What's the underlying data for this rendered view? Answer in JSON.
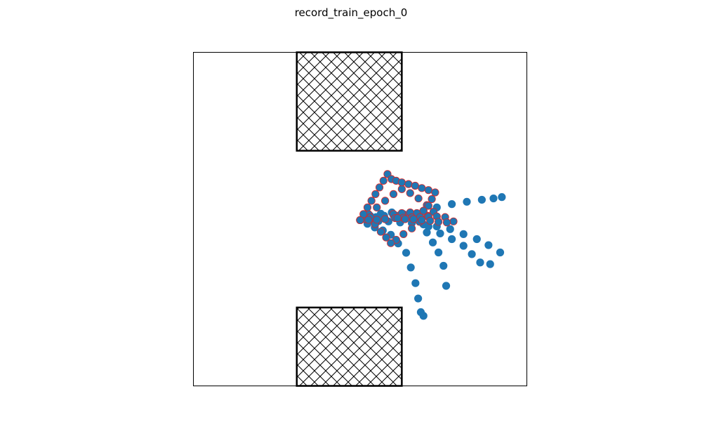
{
  "title": "record_train_epoch_0",
  "chart_data": {
    "type": "scatter",
    "title": "record_train_epoch_0",
    "xlabel": "",
    "ylabel": "",
    "xlim": [
      0,
      10
    ],
    "ylim": [
      0,
      10
    ],
    "axes_visible": false,
    "grid": false,
    "obstacles": [
      {
        "name": "",
        "x": [
          3.1,
          6.25
        ],
        "y": [
          7.05,
          10.0
        ],
        "hatch": "crosshatch"
      },
      {
        "name": "",
        "x": [
          3.1,
          6.25
        ],
        "y": [
          0.0,
          2.35
        ],
        "hatch": "crosshatch"
      }
    ],
    "series": [
      {
        "color": "#1f77b4",
        "edge": "#1f77b4",
        "x": [
          5.0,
          5.22,
          5.44,
          5.68,
          5.92,
          6.14,
          6.38,
          6.52,
          6.66,
          6.74,
          6.82,
          6.9
        ],
        "y": [
          4.97,
          4.86,
          4.75,
          4.66,
          4.53,
          4.27,
          3.99,
          3.55,
          3.08,
          2.62,
          2.21,
          2.1
        ]
      },
      {
        "color": "#1f77b4",
        "edge": "#1f77b4",
        "x": [
          5.0,
          5.22,
          5.48,
          5.72,
          6.0,
          6.3,
          6.58,
          7.0,
          7.18,
          7.35,
          7.5,
          7.58
        ],
        "y": [
          4.97,
          5.02,
          5.06,
          5.1,
          5.12,
          5.06,
          5.0,
          4.6,
          4.3,
          4.0,
          3.6,
          3.0
        ]
      },
      {
        "color": "#1f77b4",
        "edge": "#1f77b4",
        "x": [
          5.0,
          5.25,
          5.55,
          5.85,
          6.2,
          6.55,
          6.9,
          7.3,
          7.7,
          8.1,
          8.5,
          8.85,
          9.2
        ],
        "y": [
          4.97,
          4.96,
          4.94,
          4.93,
          4.9,
          4.88,
          4.84,
          4.78,
          4.7,
          4.55,
          4.4,
          4.22,
          4.0
        ]
      },
      {
        "color": "#1f77b4",
        "edge": "#1f77b4",
        "x": [
          5.0,
          5.3,
          5.62,
          5.95,
          6.3,
          6.7,
          7.05,
          7.4,
          7.75,
          8.1,
          8.35,
          8.6,
          8.9
        ],
        "y": [
          4.97,
          5.1,
          5.16,
          5.2,
          5.15,
          5.0,
          4.78,
          4.57,
          4.4,
          4.2,
          3.95,
          3.7,
          3.65
        ]
      },
      {
        "color": "#1f77b4",
        "edge": "#1f77b4",
        "x": [
          5.0,
          5.35,
          5.72,
          6.1,
          6.5,
          6.9,
          7.3,
          7.75,
          8.2,
          8.65,
          9.0,
          9.25
        ],
        "y": [
          4.97,
          5.02,
          5.07,
          5.1,
          5.18,
          5.25,
          5.35,
          5.45,
          5.52,
          5.58,
          5.62,
          5.66
        ]
      },
      {
        "color": "#1f77b4",
        "edge": "#d62728",
        "x": [
          5.0,
          5.25,
          5.5,
          5.75,
          6.0,
          6.25,
          6.5,
          6.75,
          7.0,
          7.2,
          7.02,
          6.78,
          6.55,
          6.3,
          6.08,
          5.92,
          5.78,
          5.62,
          5.45,
          5.3,
          5.15,
          5.0
        ],
        "y": [
          4.97,
          5.15,
          5.35,
          5.55,
          5.75,
          5.9,
          5.78,
          5.62,
          5.42,
          5.22,
          5.1,
          4.92,
          4.72,
          4.55,
          4.38,
          4.28,
          4.45,
          4.62,
          4.85,
          5.05,
          5.0,
          4.97
        ]
      },
      {
        "color": "#1f77b4",
        "edge": "#d62728",
        "x": [
          5.0,
          5.1,
          5.22,
          5.34,
          5.46,
          5.58,
          5.7,
          5.82,
          5.94,
          6.08,
          6.25,
          6.45,
          6.65,
          6.85,
          7.05,
          7.25,
          7.15,
          7.05,
          6.9,
          6.7,
          6.5,
          6.25,
          6.0,
          5.75,
          5.5,
          5.25,
          5.0
        ],
        "y": [
          4.97,
          5.15,
          5.35,
          5.55,
          5.75,
          5.95,
          6.15,
          6.35,
          6.2,
          6.15,
          6.1,
          6.05,
          6.0,
          5.93,
          5.87,
          5.8,
          5.6,
          5.4,
          5.25,
          5.18,
          5.2,
          5.18,
          5.15,
          5.0,
          4.98,
          4.98,
          4.97
        ]
      },
      {
        "color": "#1f77b4",
        "edge": "#d62728",
        "x": [
          6.05,
          6.3,
          6.55,
          6.8,
          7.05,
          7.3,
          7.55,
          7.8,
          7.6,
          7.35,
          7.1,
          6.85,
          6.6,
          6.35,
          6.12
        ],
        "y": [
          5.03,
          5.04,
          5.05,
          5.06,
          5.07,
          5.08,
          5.06,
          4.93,
          4.9,
          4.92,
          4.95,
          4.97,
          5.0,
          5.0,
          5.03
        ]
      }
    ]
  }
}
